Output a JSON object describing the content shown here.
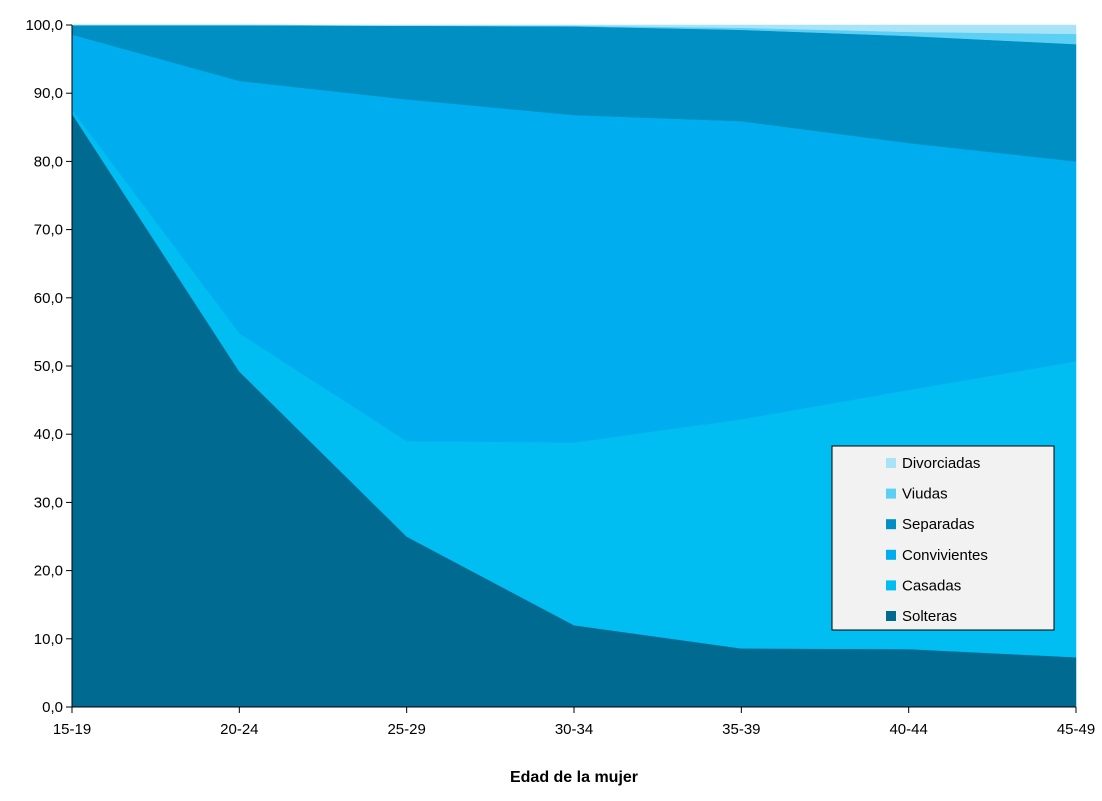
{
  "chart_data": {
    "type": "area",
    "stacked": true,
    "categories": [
      "15-19",
      "20-24",
      "25-29",
      "30-34",
      "35-39",
      "40-44",
      "45-49"
    ],
    "xlabel": "Edad de la mujer",
    "ylabel": "",
    "ylim": [
      0,
      100
    ],
    "yticks": [
      "0,0",
      "10,0",
      "20,0",
      "30,0",
      "40,0",
      "50,0",
      "60,0",
      "70,0",
      "80,0",
      "90,0",
      "100,0"
    ],
    "grid": false,
    "legend_position": "right",
    "series": [
      {
        "name": "Solteras",
        "color": "#006a91",
        "values": [
          87.0,
          49.2,
          25.0,
          12.0,
          8.6,
          8.5,
          7.3
        ]
      },
      {
        "name": "Casadas",
        "color": "#00bdf2",
        "values": [
          0.6,
          5.6,
          14.0,
          26.8,
          33.6,
          38.0,
          43.4
        ]
      },
      {
        "name": "Convivientes",
        "color": "#00aeef",
        "values": [
          11.0,
          37.0,
          50.1,
          48.0,
          43.7,
          36.2,
          29.3
        ]
      },
      {
        "name": "Separadas",
        "color": "#008fc3",
        "values": [
          1.4,
          8.2,
          10.8,
          13.0,
          13.4,
          15.7,
          17.2
        ]
      },
      {
        "name": "Viudas",
        "color": "#5ccff5",
        "values": [
          0.0,
          0.0,
          0.0,
          0.1,
          0.3,
          0.6,
          1.5
        ]
      },
      {
        "name": "Divorciadas",
        "color": "#a9e3f7",
        "values": [
          0.0,
          0.0,
          0.1,
          0.1,
          0.4,
          1.0,
          1.3
        ]
      }
    ]
  }
}
